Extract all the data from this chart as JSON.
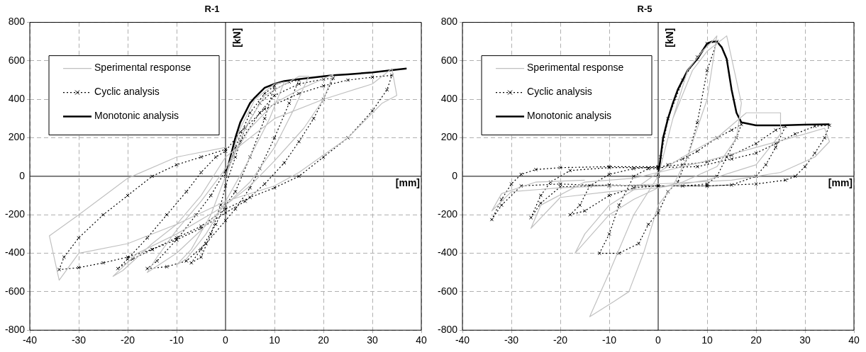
{
  "chart_data": [
    {
      "type": "line",
      "title": "R-1",
      "xlabel": "[mm]",
      "ylabel": "[kN]",
      "xlim": [
        -40,
        40
      ],
      "xticks": [
        -40,
        -30,
        -20,
        -10,
        0,
        10,
        20,
        30,
        40
      ],
      "ylim": [
        -800,
        800
      ],
      "yticks": [
        -800,
        -600,
        -400,
        -200,
        0,
        200,
        400,
        600,
        800
      ],
      "grid": true,
      "legend": "top left",
      "series": [
        {
          "name": "Sperimental response",
          "color": "#c0c0c0",
          "marker": "none",
          "line_style": "solid",
          "x": [
            0,
            3,
            6,
            10,
            12,
            9,
            4,
            0,
            -4,
            -8,
            -10,
            -7,
            -3,
            0,
            4,
            8,
            15,
            17,
            14,
            10,
            5,
            0,
            -5,
            -10,
            -16,
            -14,
            -10,
            -5,
            0,
            5,
            10,
            15,
            22,
            20,
            16,
            10,
            5,
            0,
            -10,
            -18,
            -23,
            -21,
            -15,
            -10,
            -5,
            0,
            5,
            10,
            20,
            30,
            34,
            35,
            32,
            25,
            15,
            10,
            0,
            -10,
            -20,
            -30,
            -34,
            -36,
            -30,
            -20,
            -10,
            0
          ],
          "values": [
            0,
            250,
            400,
            480,
            490,
            300,
            50,
            -130,
            -300,
            -430,
            -460,
            -380,
            -200,
            0,
            250,
            420,
            520,
            520,
            350,
            150,
            -30,
            -150,
            -280,
            -400,
            -500,
            -420,
            -280,
            -130,
            40,
            250,
            380,
            450,
            530,
            400,
            250,
            80,
            -50,
            -150,
            -300,
            -400,
            -520,
            -490,
            -350,
            -250,
            -100,
            100,
            200,
            300,
            400,
            480,
            560,
            420,
            380,
            200,
            20,
            -50,
            -130,
            -250,
            -350,
            -400,
            -540,
            -310,
            -200,
            -10,
            100,
            150
          ]
        },
        {
          "name": "Cyclic analysis",
          "color": "#000000",
          "marker": "cross",
          "line_style": "dotted",
          "x": [
            0,
            2,
            5,
            8,
            10,
            8,
            5,
            2,
            0,
            -2,
            -5,
            -7,
            -5,
            -3,
            -1,
            0,
            2,
            4,
            7,
            10,
            13,
            15,
            13,
            10,
            7,
            5,
            2,
            0,
            -4,
            -8,
            -12,
            -16,
            -14,
            -10,
            -6,
            -3,
            0,
            3,
            7,
            10,
            15,
            20,
            22,
            20,
            18,
            15,
            12,
            8,
            4,
            0,
            -5,
            -10,
            -15,
            -19,
            -22,
            -20,
            -16,
            -12,
            -8,
            -5,
            -2,
            0,
            3,
            8,
            15,
            20,
            25,
            30,
            34,
            33,
            30,
            25,
            20,
            15,
            10,
            5,
            0,
            -5,
            -10,
            -15,
            -20,
            -25,
            -30,
            -34,
            -33,
            -30,
            -25,
            -20,
            -15,
            -10,
            -5,
            0
          ],
          "values": [
            0,
            150,
            330,
            430,
            470,
            300,
            100,
            -80,
            -150,
            -250,
            -380,
            -450,
            -420,
            -300,
            -150,
            -50,
            100,
            250,
            380,
            450,
            490,
            500,
            380,
            200,
            40,
            -60,
            -170,
            -230,
            -350,
            -440,
            -470,
            -480,
            -440,
            -330,
            -200,
            -100,
            30,
            180,
            330,
            420,
            480,
            505,
            510,
            400,
            300,
            180,
            70,
            -40,
            -130,
            -190,
            -270,
            -330,
            -380,
            -430,
            -480,
            -430,
            -320,
            -200,
            -80,
            20,
            100,
            130,
            230,
            350,
            430,
            470,
            500,
            515,
            525,
            450,
            340,
            200,
            100,
            0,
            -60,
            -110,
            -170,
            -260,
            -320,
            -380,
            -420,
            -450,
            -475,
            -485,
            -420,
            -320,
            -200,
            -100,
            0,
            60,
            100,
            140
          ]
        },
        {
          "name": "Monotonic analysis",
          "color": "#000000",
          "marker": "none",
          "line_style": "solid",
          "x": [
            0,
            1,
            2,
            3,
            4,
            5,
            6,
            8,
            10,
            12,
            15,
            20,
            22,
            25,
            30,
            35,
            37
          ],
          "values": [
            0,
            100,
            200,
            280,
            330,
            380,
            410,
            460,
            480,
            495,
            505,
            520,
            525,
            530,
            540,
            555,
            560
          ]
        }
      ]
    },
    {
      "type": "line",
      "title": "R-5",
      "xlabel": "[mm]",
      "ylabel": "[kN]",
      "xlim": [
        -40,
        40
      ],
      "xticks": [
        -40,
        -30,
        -20,
        -10,
        0,
        10,
        20,
        30,
        40
      ],
      "ylim": [
        -800,
        800
      ],
      "yticks": [
        -800,
        -600,
        -400,
        -200,
        0,
        200,
        400,
        600,
        800
      ],
      "grid": true,
      "legend": "top left",
      "series": [
        {
          "name": "Sperimental response",
          "color": "#c0c0c0",
          "marker": "none",
          "line_style": "solid",
          "x": [
            0,
            3,
            6,
            9,
            11,
            12,
            10,
            6,
            3,
            0,
            -3,
            -6,
            -9,
            -14,
            -10,
            -5,
            0,
            3,
            7,
            10,
            14,
            17,
            16,
            12,
            5,
            0,
            -5,
            -10,
            -17,
            -15,
            -10,
            -5,
            0,
            5,
            12,
            18,
            25,
            25,
            20,
            10,
            0,
            -10,
            -20,
            -26,
            -24,
            -15,
            -5,
            0,
            10,
            20,
            30,
            34,
            35,
            32,
            25,
            15,
            0,
            -20,
            -30,
            -34,
            -32,
            -25,
            -15
          ],
          "values": [
            0,
            300,
            550,
            650,
            700,
            730,
            400,
            100,
            -50,
            -150,
            -400,
            -600,
            -650,
            -730,
            -500,
            -200,
            0,
            300,
            550,
            650,
            730,
            380,
            200,
            50,
            -30,
            -60,
            -120,
            -200,
            -400,
            -300,
            -150,
            -70,
            20,
            100,
            200,
            330,
            330,
            220,
            60,
            -20,
            -60,
            -80,
            -110,
            -270,
            -150,
            -30,
            -10,
            20,
            80,
            150,
            220,
            250,
            180,
            100,
            20,
            -20,
            -40,
            -60,
            -80,
            -180,
            -90,
            -30,
            -20
          ]
        },
        {
          "name": "Cyclic analysis",
          "color": "#000000",
          "marker": "cross",
          "line_style": "dotted",
          "x": [
            0,
            0.5,
            2,
            5,
            8,
            10,
            12,
            10,
            8,
            6,
            4,
            2,
            0,
            -2,
            -4,
            -8,
            -12,
            -10,
            -8,
            -5,
            -2,
            0,
            2,
            5,
            8,
            12,
            15,
            17,
            16,
            14,
            12,
            10,
            5,
            0,
            -5,
            -10,
            -15,
            -18,
            -16,
            -14,
            -10,
            -5,
            0,
            5,
            10,
            15,
            20,
            24,
            26,
            24,
            22,
            20,
            15,
            10,
            0,
            -10,
            -20,
            -24,
            -26,
            -24,
            -22,
            -18,
            -10,
            0,
            8,
            15,
            20,
            24,
            28,
            32,
            35,
            34,
            32,
            30,
            28,
            26,
            20,
            10,
            0,
            -10,
            -20,
            -28,
            -32,
            -34,
            -32,
            -30,
            -28,
            -25,
            -20,
            -10,
            0
          ],
          "values": [
            0,
            100,
            300,
            500,
            620,
            690,
            700,
            550,
            280,
            100,
            -30,
            -80,
            -190,
            -250,
            -350,
            -400,
            -400,
            -300,
            -150,
            0,
            40,
            40,
            60,
            90,
            130,
            200,
            240,
            270,
            200,
            100,
            0,
            -40,
            -50,
            -50,
            -60,
            -100,
            -180,
            -200,
            -150,
            -50,
            10,
            40,
            50,
            60,
            75,
            110,
            170,
            240,
            260,
            150,
            60,
            0,
            -45,
            -50,
            -50,
            -45,
            -55,
            -140,
            -215,
            -100,
            -30,
            30,
            45,
            45,
            50,
            90,
            120,
            170,
            220,
            260,
            265,
            200,
            120,
            50,
            0,
            -20,
            -40,
            -50,
            -50,
            -50,
            -40,
            -50,
            -150,
            -225,
            -120,
            -40,
            10,
            35,
            45,
            50,
            50
          ]
        },
        {
          "name": "Monotonic analysis",
          "color": "#000000",
          "marker": "none",
          "line_style": "solid",
          "x": [
            0,
            0.5,
            1,
            2,
            3,
            4,
            5,
            6,
            8,
            10,
            11,
            12,
            13,
            14,
            15,
            16,
            17,
            20,
            25,
            30,
            35
          ],
          "values": [
            0,
            100,
            200,
            300,
            380,
            450,
            500,
            550,
            610,
            690,
            700,
            700,
            670,
            610,
            450,
            330,
            280,
            265,
            265,
            268,
            270
          ]
        }
      ]
    }
  ]
}
